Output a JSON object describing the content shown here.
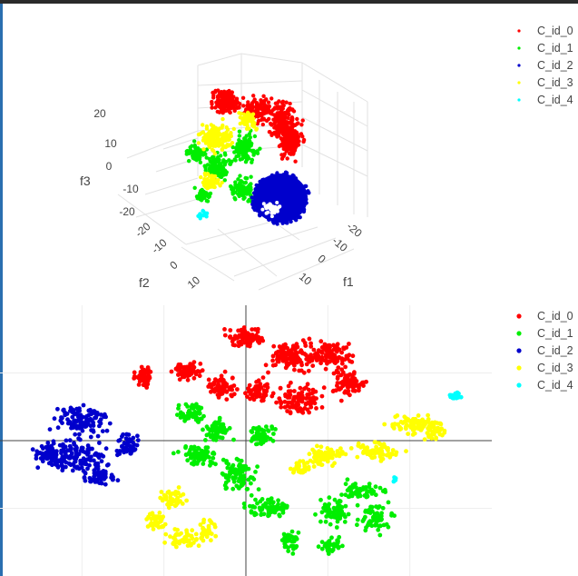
{
  "chart_data": [
    {
      "type": "scatter3d",
      "axes": {
        "x": {
          "title": "f1",
          "ticks": [
            "-20",
            "-10",
            "0",
            "10"
          ]
        },
        "y": {
          "title": "f2",
          "ticks": [
            "-20",
            "-10",
            "0",
            "10"
          ]
        },
        "z": {
          "title": "f3",
          "ticks": [
            "-20",
            "-10",
            "0",
            "10",
            "20"
          ]
        }
      },
      "grid": true,
      "legend": "top-right",
      "series": [
        {
          "name": "C_id_0",
          "color": "#ff0000"
        },
        {
          "name": "C_id_1",
          "color": "#00ee00"
        },
        {
          "name": "C_id_2",
          "color": "#0000cc"
        },
        {
          "name": "C_id_3",
          "color": "#ffff00"
        },
        {
          "name": "C_id_4",
          "color": "#00ffff"
        }
      ]
    },
    {
      "type": "scatter",
      "xlim": [
        -30,
        30
      ],
      "ylim": [
        -20,
        20
      ],
      "grid": true,
      "zero_lines": true,
      "legend": "top-right",
      "series": [
        {
          "name": "C_id_0",
          "color": "#ff0000"
        },
        {
          "name": "C_id_1",
          "color": "#00ee00"
        },
        {
          "name": "C_id_2",
          "color": "#0000cc"
        },
        {
          "name": "C_id_3",
          "color": "#ffff00"
        },
        {
          "name": "C_id_4",
          "color": "#00ffff"
        }
      ]
    }
  ]
}
